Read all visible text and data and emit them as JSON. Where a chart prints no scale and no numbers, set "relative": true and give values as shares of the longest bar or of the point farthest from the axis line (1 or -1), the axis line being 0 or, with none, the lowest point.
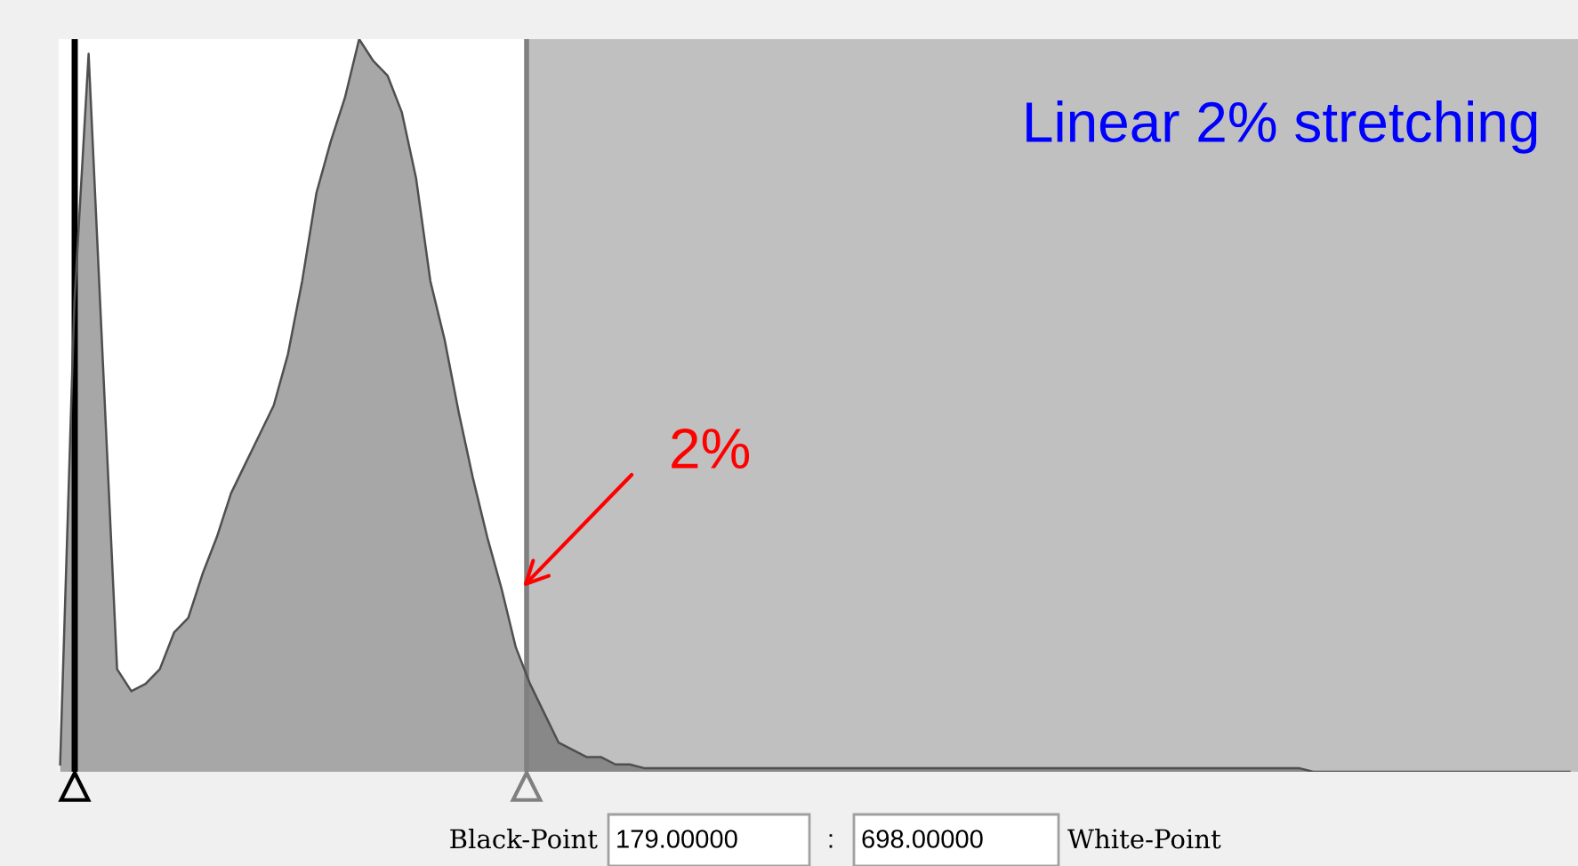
{
  "chart_data": {
    "type": "area",
    "relative": true,
    "categories": [
      null,
      null,
      null,
      null,
      null,
      null,
      null,
      null,
      null,
      null,
      null,
      null,
      null,
      null,
      null,
      null,
      null,
      null,
      null,
      null,
      null,
      null,
      null,
      null,
      null,
      null,
      null,
      null,
      null,
      null,
      null,
      null,
      null,
      null,
      null,
      null,
      null,
      null,
      null,
      null,
      null,
      null,
      null,
      null,
      null,
      null,
      null,
      null,
      null,
      null,
      null,
      null,
      null,
      null,
      null,
      null,
      null,
      null,
      null,
      null,
      null,
      null,
      null,
      null,
      null,
      null,
      null,
      null,
      null,
      null,
      null,
      null,
      null,
      null,
      null,
      null,
      null,
      null,
      null,
      null,
      null,
      null,
      null,
      null,
      null,
      null,
      null,
      null,
      null,
      null,
      null,
      null,
      null,
      null,
      null,
      null,
      null,
      null,
      null,
      null,
      null,
      null,
      null,
      null,
      null,
      null,
      null
    ],
    "series": [
      {
        "color": "#4f4f4f",
        "values": [
          0.01,
          0.64,
          0.98,
          0.56,
          0.14,
          0.11,
          0.12,
          0.14,
          0.19,
          0.21,
          0.27,
          0.32,
          0.38,
          0.42,
          0.46,
          0.5,
          0.57,
          0.67,
          0.79,
          0.86,
          0.92,
          1,
          0.97,
          0.95,
          0.9,
          0.81,
          0.67,
          0.59,
          0.49,
          0.4,
          0.32,
          0.25,
          0.17,
          0.12,
          0.08,
          0.04,
          0.03,
          0.02,
          0.02,
          0.01,
          0.01,
          0.005,
          0.005,
          0.005,
          0.005,
          0.005,
          0.005,
          0.005,
          0.005,
          0.005,
          0.005,
          0.005,
          0.005,
          0.005,
          0.005,
          0.005,
          0.005,
          0.005,
          0.005,
          0.005,
          0.005,
          0.005,
          0.005,
          0.005,
          0.005,
          0.005,
          0.005,
          0.005,
          0.005,
          0.005,
          0.005,
          0.005,
          0.005,
          0.005,
          0.005,
          0.005,
          0.005,
          0.005,
          0.005,
          0.005,
          0.005,
          0.005,
          0.005,
          0.005,
          0.005,
          0.005,
          0.005,
          0.005,
          0,
          0,
          0,
          0,
          0,
          0,
          0,
          0,
          0,
          0,
          0,
          0,
          0,
          0,
          0,
          0,
          0,
          0,
          0
        ]
      }
    ],
    "annotations": [
      "Linear 2% stretching",
      "2%",
      "Black-Point",
      "179.00000",
      ":",
      "698.00000",
      "White-Point"
    ]
  }
}
